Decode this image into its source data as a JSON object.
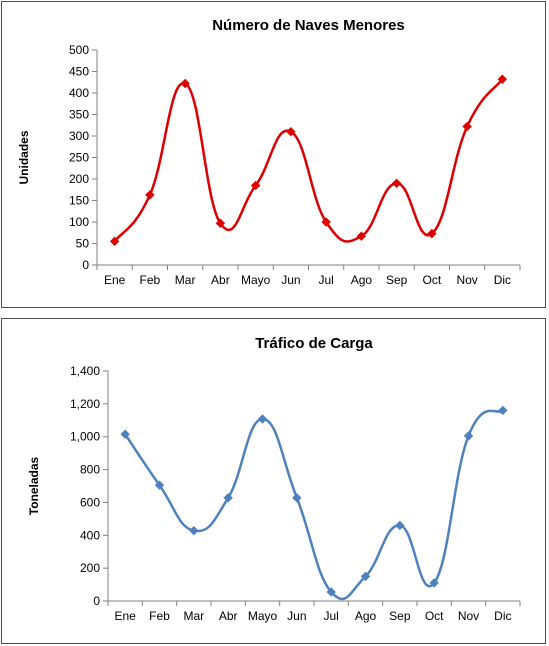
{
  "chart_data": [
    {
      "type": "line",
      "title": "Número de Naves Menores",
      "xlabel": "",
      "ylabel": "Unidades",
      "categories": [
        "Ene",
        "Feb",
        "Mar",
        "Abr",
        "Mayo",
        "Jun",
        "Jul",
        "Ago",
        "Sep",
        "Oct",
        "Nov",
        "Dic"
      ],
      "ylim": [
        0,
        500
      ],
      "yticks": [
        0,
        50,
        100,
        150,
        200,
        250,
        300,
        350,
        400,
        450,
        500
      ],
      "ytick_labels": [
        "0",
        "50",
        "100",
        "150",
        "200",
        "250",
        "300",
        "350",
        "400",
        "450",
        "500"
      ],
      "series": [
        {
          "values": [
            55,
            163,
            422,
            97,
            185,
            310,
            100,
            67,
            190,
            73,
            322,
            432
          ],
          "color": "#dd0000",
          "marker": "diamond"
        }
      ],
      "smooth": true,
      "grid": false,
      "legend": "none"
    },
    {
      "type": "line",
      "title": "Tráfico de Carga",
      "xlabel": "",
      "ylabel": "Toneladas",
      "categories": [
        "Ene",
        "Feb",
        "Mar",
        "Abr",
        "Mayo",
        "Jun",
        "Jul",
        "Ago",
        "Sep",
        "Oct",
        "Nov",
        "Dic"
      ],
      "ylim": [
        0,
        1400
      ],
      "yticks": [
        0,
        200,
        400,
        600,
        800,
        1000,
        1200,
        1400
      ],
      "ytick_labels": [
        "0",
        "200",
        "400",
        "600",
        "800",
        "1,000",
        "1,200",
        "1,400"
      ],
      "series": [
        {
          "values": [
            1015,
            705,
            428,
            628,
            1108,
            628,
            55,
            150,
            460,
            110,
            1005,
            1160
          ],
          "color": "#4f81bd",
          "marker": "diamond"
        }
      ],
      "smooth": true,
      "grid": false,
      "legend": "none"
    }
  ]
}
